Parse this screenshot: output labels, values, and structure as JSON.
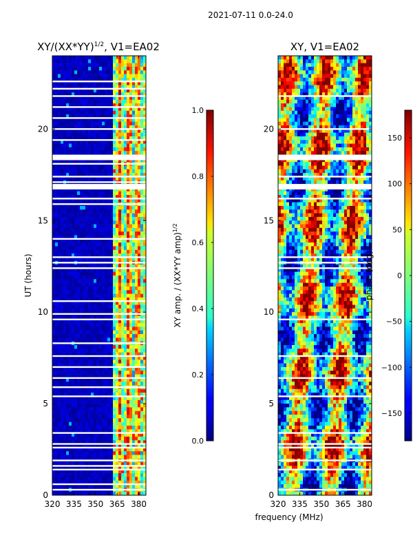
{
  "figure": {
    "suptitle": "2021-07-11 0.0-24.0",
    "xlabel": "frequency (MHz)"
  },
  "chart_data": [
    {
      "type": "heatmap",
      "title_main": "XY/(XX*YY)",
      "title_exp": "1/2",
      "title_tail": ", V1=EA02",
      "xlabel": "",
      "ylabel": "UT (hours)",
      "xlim": [
        320,
        385
      ],
      "ylim": [
        0,
        24
      ],
      "xticks": [
        320,
        335,
        350,
        365,
        380
      ],
      "yticks": [
        0,
        5,
        10,
        15,
        20
      ],
      "colorbar": {
        "label_main": "XY amp. / (XX*YY amp)",
        "label_exp": "1/2",
        "range": [
          0.0,
          1.0
        ],
        "ticks": [
          "0.0",
          "0.2",
          "0.4",
          "0.6",
          "0.8",
          "1.0"
        ],
        "tick_values": [
          0.0,
          0.2,
          0.4,
          0.6,
          0.8,
          1.0
        ],
        "colormap": "jet"
      },
      "blank_rows_ut": [
        0.3,
        0.6,
        1.4,
        1.6,
        1.9,
        2.6,
        2.8,
        3.4,
        5.4,
        5.9,
        6.4,
        7.0,
        7.6,
        8.3,
        9.6,
        9.9,
        10.6,
        12.4,
        12.7,
        13.0,
        14.0,
        15.9,
        16.2,
        17.1,
        17.4,
        18.1,
        19.4,
        20.0,
        20.6,
        21.2,
        21.8,
        22.2,
        22.6
      ]
    },
    {
      "type": "heatmap",
      "title_main": "XY, V1=EA02",
      "xlabel": "frequency (MHz)",
      "ylabel": "",
      "xlim": [
        320,
        385
      ],
      "ylim": [
        0,
        24
      ],
      "xticks": [
        320,
        335,
        350,
        365,
        380
      ],
      "yticks": [
        0,
        5,
        10,
        15,
        20
      ],
      "colorbar": {
        "label_main": "phase (deg)",
        "range": [
          -180,
          180
        ],
        "ticks": [
          "−150",
          "−100",
          "−50",
          "0",
          "50",
          "100",
          "150"
        ],
        "tick_values": [
          -150,
          -100,
          -50,
          0,
          50,
          100,
          150
        ],
        "colormap": "jet"
      },
      "blank_rows_ut": [
        0.3,
        1.4,
        1.9,
        2.6,
        2.8,
        3.4,
        5.4,
        6.4,
        7.6,
        9.6,
        12.4,
        12.7,
        13.0,
        16.2,
        17.4,
        20.0,
        21.8
      ]
    }
  ],
  "colors": {
    "axis": "#000000",
    "background": "#ffffff"
  }
}
